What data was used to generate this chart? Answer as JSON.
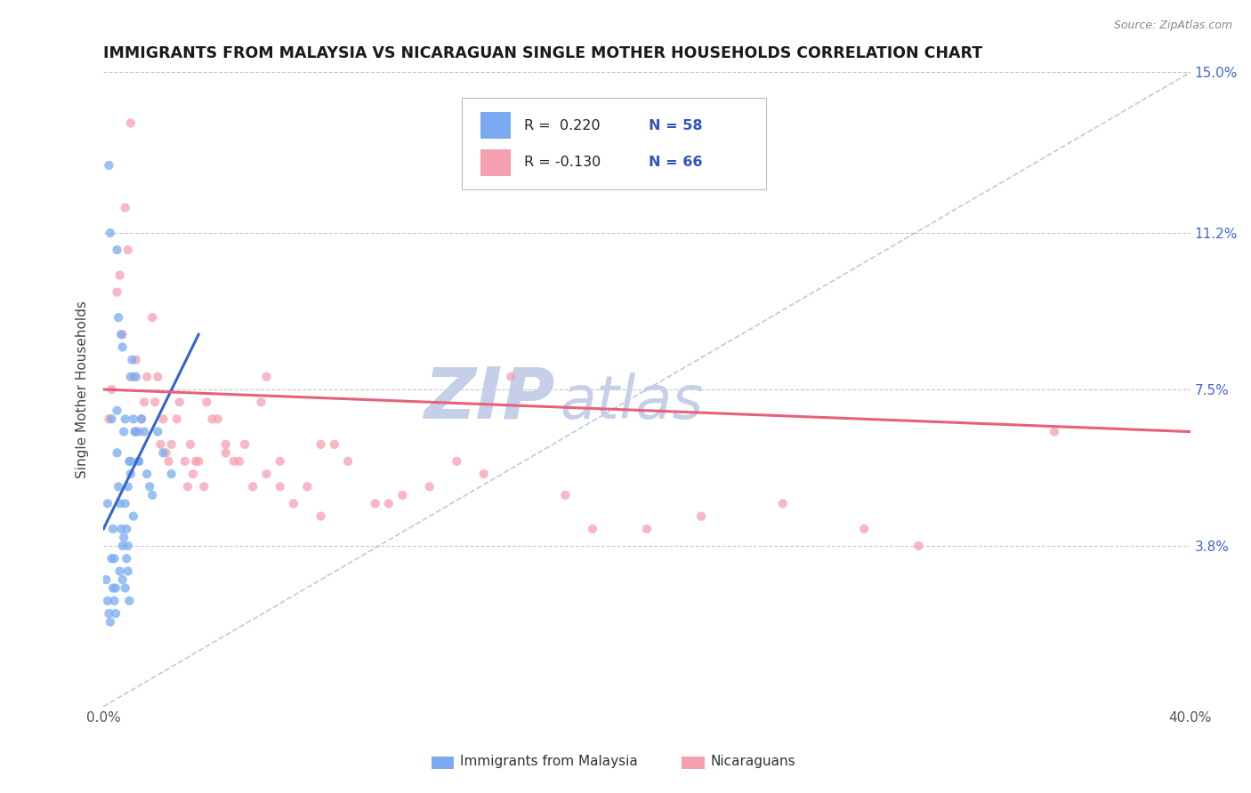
{
  "title": "IMMIGRANTS FROM MALAYSIA VS NICARAGUAN SINGLE MOTHER HOUSEHOLDS CORRELATION CHART",
  "source_text": "Source: ZipAtlas.com",
  "ylabel": "Single Mother Households",
  "xlim": [
    0.0,
    40.0
  ],
  "ylim": [
    0.0,
    15.0
  ],
  "yticks": [
    3.8,
    7.5,
    11.2,
    15.0
  ],
  "ytick_labels": [
    "3.8%",
    "7.5%",
    "11.2%",
    "15.0%"
  ],
  "grid_color": "#c8c8c8",
  "background_color": "#ffffff",
  "title_fontsize": 12.5,
  "watermark1": "ZIP",
  "watermark2": "atlas",
  "watermark_color1": "#c5d0e8",
  "watermark_color2": "#c5d0e8",
  "color_malaysia": "#7aabf0",
  "color_nicaragua": "#f5a0b0",
  "scatter_alpha": 0.75,
  "scatter_size": 55,
  "trend_color_malaysia": "#3366cc",
  "trend_color_nicaragua": "#e8607a",
  "ref_line_color": "#b0c0e0",
  "malaysia_scatter_x": [
    0.15,
    0.2,
    0.25,
    0.3,
    0.35,
    0.4,
    0.45,
    0.5,
    0.5,
    0.55,
    0.6,
    0.65,
    0.7,
    0.7,
    0.75,
    0.8,
    0.8,
    0.85,
    0.9,
    0.9,
    0.95,
    1.0,
    1.0,
    1.05,
    1.1,
    1.15,
    1.2,
    1.2,
    1.3,
    1.4,
    1.5,
    1.6,
    1.7,
    1.8,
    2.0,
    2.2,
    2.5,
    0.1,
    0.15,
    0.2,
    0.25,
    0.3,
    0.35,
    0.4,
    0.45,
    0.5,
    0.55,
    0.6,
    0.65,
    0.7,
    0.75,
    0.8,
    0.85,
    0.9,
    0.95,
    1.0,
    1.1,
    1.3
  ],
  "malaysia_scatter_y": [
    4.8,
    12.8,
    11.2,
    6.8,
    4.2,
    3.5,
    2.8,
    10.8,
    7.0,
    9.2,
    4.8,
    8.8,
    8.5,
    3.0,
    6.5,
    6.8,
    4.8,
    4.2,
    5.2,
    3.2,
    5.8,
    7.8,
    5.8,
    8.2,
    6.8,
    6.5,
    6.5,
    7.8,
    5.8,
    6.8,
    6.5,
    5.5,
    5.2,
    5.0,
    6.5,
    6.0,
    5.5,
    3.0,
    2.5,
    2.2,
    2.0,
    3.5,
    2.8,
    2.5,
    2.2,
    6.0,
    5.2,
    3.2,
    4.2,
    3.8,
    4.0,
    2.8,
    3.5,
    3.8,
    2.5,
    5.5,
    4.5,
    5.8
  ],
  "nicaragua_scatter_x": [
    0.2,
    0.5,
    0.8,
    1.0,
    1.2,
    1.5,
    1.8,
    2.0,
    2.2,
    2.5,
    2.8,
    3.0,
    3.2,
    3.5,
    3.8,
    4.0,
    4.5,
    5.0,
    5.5,
    6.0,
    6.5,
    7.0,
    8.0,
    9.0,
    10.0,
    12.0,
    15.0,
    20.0,
    25.0,
    30.0,
    0.6,
    0.9,
    1.1,
    1.4,
    1.6,
    1.9,
    2.1,
    2.4,
    2.7,
    3.1,
    3.4,
    3.7,
    4.2,
    4.8,
    5.2,
    5.8,
    6.5,
    7.5,
    8.5,
    10.5,
    13.0,
    18.0,
    0.3,
    0.7,
    1.3,
    2.3,
    3.3,
    4.5,
    6.0,
    8.0,
    11.0,
    14.0,
    17.0,
    22.0,
    28.0,
    35.0
  ],
  "nicaragua_scatter_y": [
    6.8,
    9.8,
    11.8,
    13.8,
    8.2,
    7.2,
    9.2,
    7.8,
    6.8,
    6.2,
    7.2,
    5.8,
    6.2,
    5.8,
    7.2,
    6.8,
    6.2,
    5.8,
    5.2,
    7.8,
    5.2,
    4.8,
    6.2,
    5.8,
    4.8,
    5.2,
    7.8,
    4.2,
    4.8,
    3.8,
    10.2,
    10.8,
    7.8,
    6.8,
    7.8,
    7.2,
    6.2,
    5.8,
    6.8,
    5.2,
    5.8,
    5.2,
    6.8,
    5.8,
    6.2,
    7.2,
    5.8,
    5.2,
    6.2,
    4.8,
    5.8,
    4.2,
    7.5,
    8.8,
    6.5,
    6.0,
    5.5,
    6.0,
    5.5,
    4.5,
    5.0,
    5.5,
    5.0,
    4.5,
    4.2,
    6.5
  ],
  "malaysia_trend_x": [
    0.0,
    3.5
  ],
  "malaysia_trend_y": [
    4.2,
    8.8
  ],
  "nicaragua_trend_x": [
    0.0,
    40.0
  ],
  "nicaragua_trend_y": [
    7.5,
    6.5
  ]
}
